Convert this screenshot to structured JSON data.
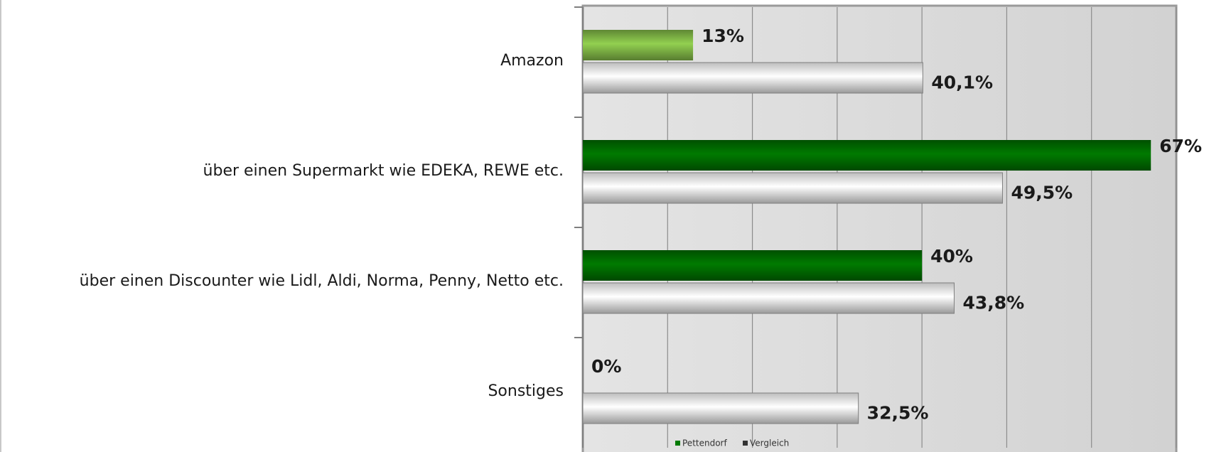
{
  "chart_data": {
    "type": "barh",
    "categories": [
      "Amazon",
      "über einen Supermarkt wie EDEKA, REWE etc.",
      "über einen Discounter wie Lidl, Aldi, Norma, Penny, Netto etc.",
      "Sonstiges"
    ],
    "series": [
      {
        "name": "Pettendorf",
        "color": "#007a00",
        "colors": [
          "#92d050",
          "#007a00",
          "#007a00",
          "#007a00"
        ],
        "values": [
          13,
          67,
          40,
          0
        ],
        "value_labels": [
          "13%",
          "67%",
          "40%",
          "0%"
        ]
      },
      {
        "name": "Vergleich",
        "color": "#f2f2f2",
        "values": [
          40.1,
          49.5,
          43.8,
          32.5
        ],
        "value_labels": [
          "40,1%",
          "49,5%",
          "43,8%",
          "32,5%"
        ]
      }
    ],
    "xlim": [
      0,
      70
    ],
    "xticks": [
      0,
      10,
      20,
      30,
      40,
      50,
      60,
      70
    ],
    "grid": true
  }
}
